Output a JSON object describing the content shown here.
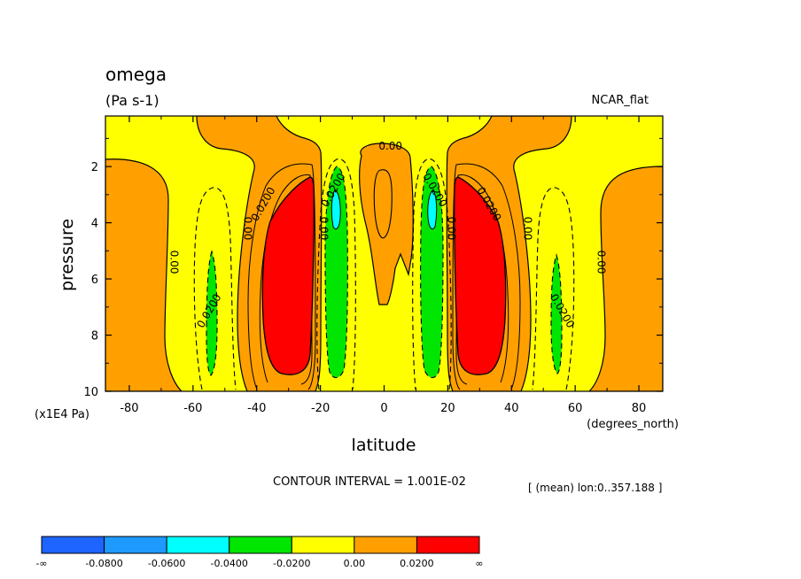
{
  "chart_data": {
    "type": "heatmap",
    "title": "omega",
    "units": "(Pa s-1)",
    "colormap_name": "NCAR_flat",
    "xlabel": "latitude",
    "x_units": "(degrees_north)",
    "ylabel": "pressure",
    "y_units": "(x1E4 Pa)",
    "xlim": [
      -87.5,
      87.5
    ],
    "ylim": [
      10,
      0.2
    ],
    "x_ticks": [
      -80,
      -60,
      -40,
      -20,
      0,
      20,
      40,
      60,
      80
    ],
    "y_ticks": [
      2,
      4,
      6,
      8,
      10
    ],
    "contour_interval_text": "CONTOUR INTERVAL = 1.001E-02",
    "subtitle_right": "[ (mean) lon:0..357.188 ]",
    "contour_labels": [
      {
        "text": "0.00",
        "x": -67,
        "y": 5.4
      },
      {
        "text": "0.00",
        "x": -44,
        "y": 4.2
      },
      {
        "text": "0.00",
        "x": -20,
        "y": 4.2
      },
      {
        "text": "0.00",
        "x": 2,
        "y": 1.4
      },
      {
        "text": "0.00",
        "x": 20,
        "y": 4.2
      },
      {
        "text": "0.00",
        "x": 44,
        "y": 4.2
      },
      {
        "text": "0.00",
        "x": 67,
        "y": 5.4
      },
      {
        "text": "0.0200",
        "x": -37,
        "y": 3.4
      },
      {
        "text": "0.0200",
        "x": 32,
        "y": 3.4
      },
      {
        "text": "0.0200",
        "x": -54,
        "y": 7.2
      },
      {
        "text": "0.0200",
        "x": 55,
        "y": 7.2
      },
      {
        "text": "0.0200",
        "x": -15,
        "y": 2.9
      },
      {
        "text": "0.0200",
        "x": 15,
        "y": 2.9
      }
    ],
    "colorbar": {
      "colors": [
        "#1e64ff",
        "#1e9aff",
        "#00ffff",
        "#00e600",
        "#ffff00",
        "#ffa000",
        "#ff0000"
      ],
      "labels": [
        "-∞",
        "-0.0800",
        "-0.0600",
        "-0.0400",
        "-0.0200",
        "0.00",
        "0.0200",
        "∞"
      ]
    }
  }
}
